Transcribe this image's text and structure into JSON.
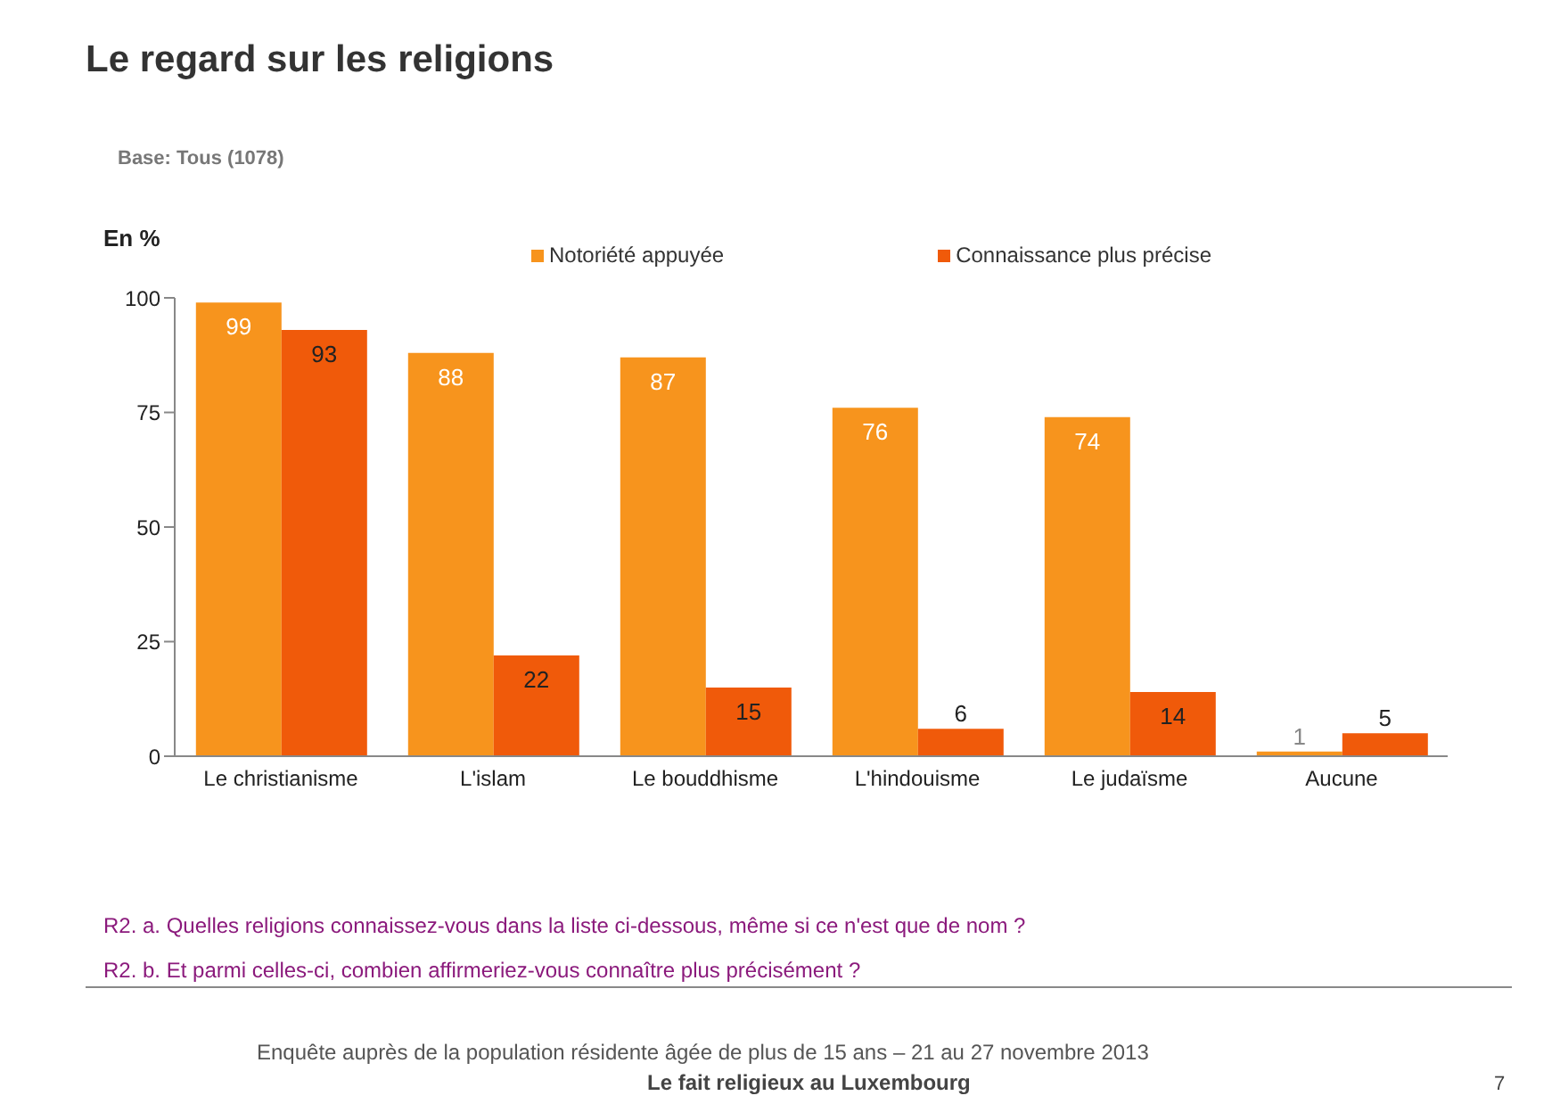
{
  "chart_data": {
    "type": "bar",
    "title": "Le regard sur les religions",
    "subtitle": "Base: Tous (1078)",
    "ylabel": "En %",
    "categories": [
      "Le christianisme",
      "L'islam",
      "Le bouddhisme",
      "L'hindouisme",
      "Le judaïsme",
      "Aucune"
    ],
    "series": [
      {
        "name": "Notoriété appuyée",
        "color": "#f7941d",
        "values": [
          99,
          88,
          87,
          76,
          74,
          1
        ]
      },
      {
        "name": "Connaissance plus précise",
        "color": "#f05a0a",
        "values": [
          93,
          22,
          15,
          6,
          14,
          5
        ]
      }
    ],
    "ylim": [
      0,
      100
    ],
    "yticks": [
      0,
      25,
      50,
      75,
      100
    ],
    "legend": "top",
    "data_labels": true,
    "annotations": [
      "R2. a. Quelles religions connaissez-vous dans la liste ci-dessous, même si ce n'est que de nom ?",
      "R2. b. Et parmi celles-ci, combien affirmeriez-vous connaître plus précisément ?",
      "Enquête auprès de la population résidente âgée de plus de 15 ans – 21 au 27 novembre 2013",
      "Le fait religieux au Luxembourg",
      "7"
    ]
  }
}
